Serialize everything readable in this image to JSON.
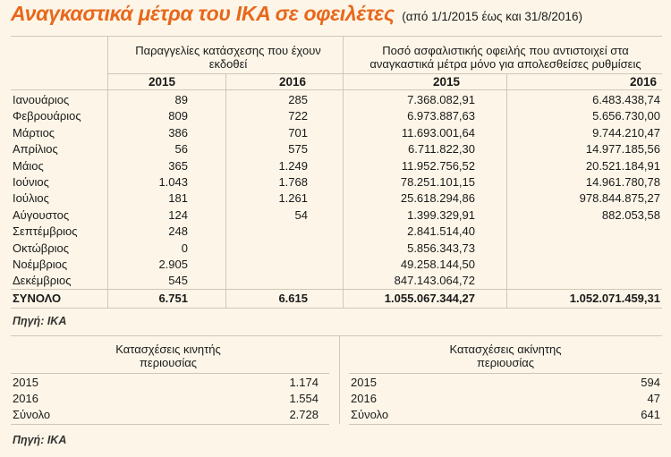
{
  "title": {
    "main": "Αναγκαστικά μέτρα του ΙΚΑ σε οφειλέτες",
    "sub": "(από 1/1/2015 έως και 31/8/2016)"
  },
  "table1": {
    "header_orders": "Παραγγελίες κατάσχεσης που έχουν εκδοθεί",
    "header_amount": "Ποσό ασφαλιστικής οφειλής που αντιστοιχεί στα αναγκαστικά μέτρα μόνο για απολεσθείσες ρυθμίσεις",
    "years": [
      "2015",
      "2016",
      "2015",
      "2016"
    ],
    "rows": [
      {
        "month": "Ιανουάριος",
        "o2015": "89",
        "o2016": "285",
        "a2015": "7.368.082,91",
        "a2016": "6.483.438,74"
      },
      {
        "month": "Φεβρουάριος",
        "o2015": "809",
        "o2016": "722",
        "a2015": "6.973.887,63",
        "a2016": "5.656.730,00"
      },
      {
        "month": "Μάρτιος",
        "o2015": "386",
        "o2016": "701",
        "a2015": "11.693.001,64",
        "a2016": "9.744.210,47"
      },
      {
        "month": "Απρίλιος",
        "o2015": "56",
        "o2016": "575",
        "a2015": "6.711.822,30",
        "a2016": "14.977.185,56"
      },
      {
        "month": "Μάιος",
        "o2015": "365",
        "o2016": "1.249",
        "a2015": "11.952.756,52",
        "a2016": "20.521.184,91"
      },
      {
        "month": "Ιούνιος",
        "o2015": "1.043",
        "o2016": "1.768",
        "a2015": "78.251.101,15",
        "a2016": "14.961.780,78"
      },
      {
        "month": "Ιούλιος",
        "o2015": "181",
        "o2016": "1.261",
        "a2015": "25.618.294,86",
        "a2016": "978.844.875,27"
      },
      {
        "month": "Αύγουστος",
        "o2015": "124",
        "o2016": "54",
        "a2015": "1.399.329,91",
        "a2016": "882.053,58"
      },
      {
        "month": "Σεπτέμβριος",
        "o2015": "248",
        "o2016": "",
        "a2015": "2.841.514,40",
        "a2016": ""
      },
      {
        "month": "Οκτώβριος",
        "o2015": "0",
        "o2016": "",
        "a2015": "5.856.343,73",
        "a2016": ""
      },
      {
        "month": "Νοέμβριος",
        "o2015": "2.905",
        "o2016": "",
        "a2015": "49.258.144,50",
        "a2016": ""
      },
      {
        "month": "Δεκέμβριος",
        "o2015": "545",
        "o2016": "",
        "a2015": "847.143.064,72",
        "a2016": ""
      }
    ],
    "total": {
      "month": "ΣΥΝΟΛΟ",
      "o2015": "6.751",
      "o2016": "6.615",
      "a2015": "1.055.067.344,27",
      "a2016": "1.052.071.459,31"
    },
    "source": "Πηγή: ΙΚΑ"
  },
  "table2": {
    "left_header": "Κατασχέσεις κινητής περιουσίας",
    "right_header": "Κατασχέσεις ακίνητης περιουσίας",
    "left_rows": [
      {
        "label": "2015",
        "value": "1.174"
      },
      {
        "label": "2016",
        "value": "1.554"
      },
      {
        "label": "Σύνολο",
        "value": "2.728"
      }
    ],
    "right_rows": [
      {
        "label": "2015",
        "value": "594"
      },
      {
        "label": "2016",
        "value": "47"
      },
      {
        "label": "Σύνολο",
        "value": "641"
      }
    ],
    "source": "Πηγή: ΙΚΑ"
  },
  "colors": {
    "title": "#e8671b",
    "background": "#fdf6e8",
    "rules": "#cfc7b6"
  }
}
